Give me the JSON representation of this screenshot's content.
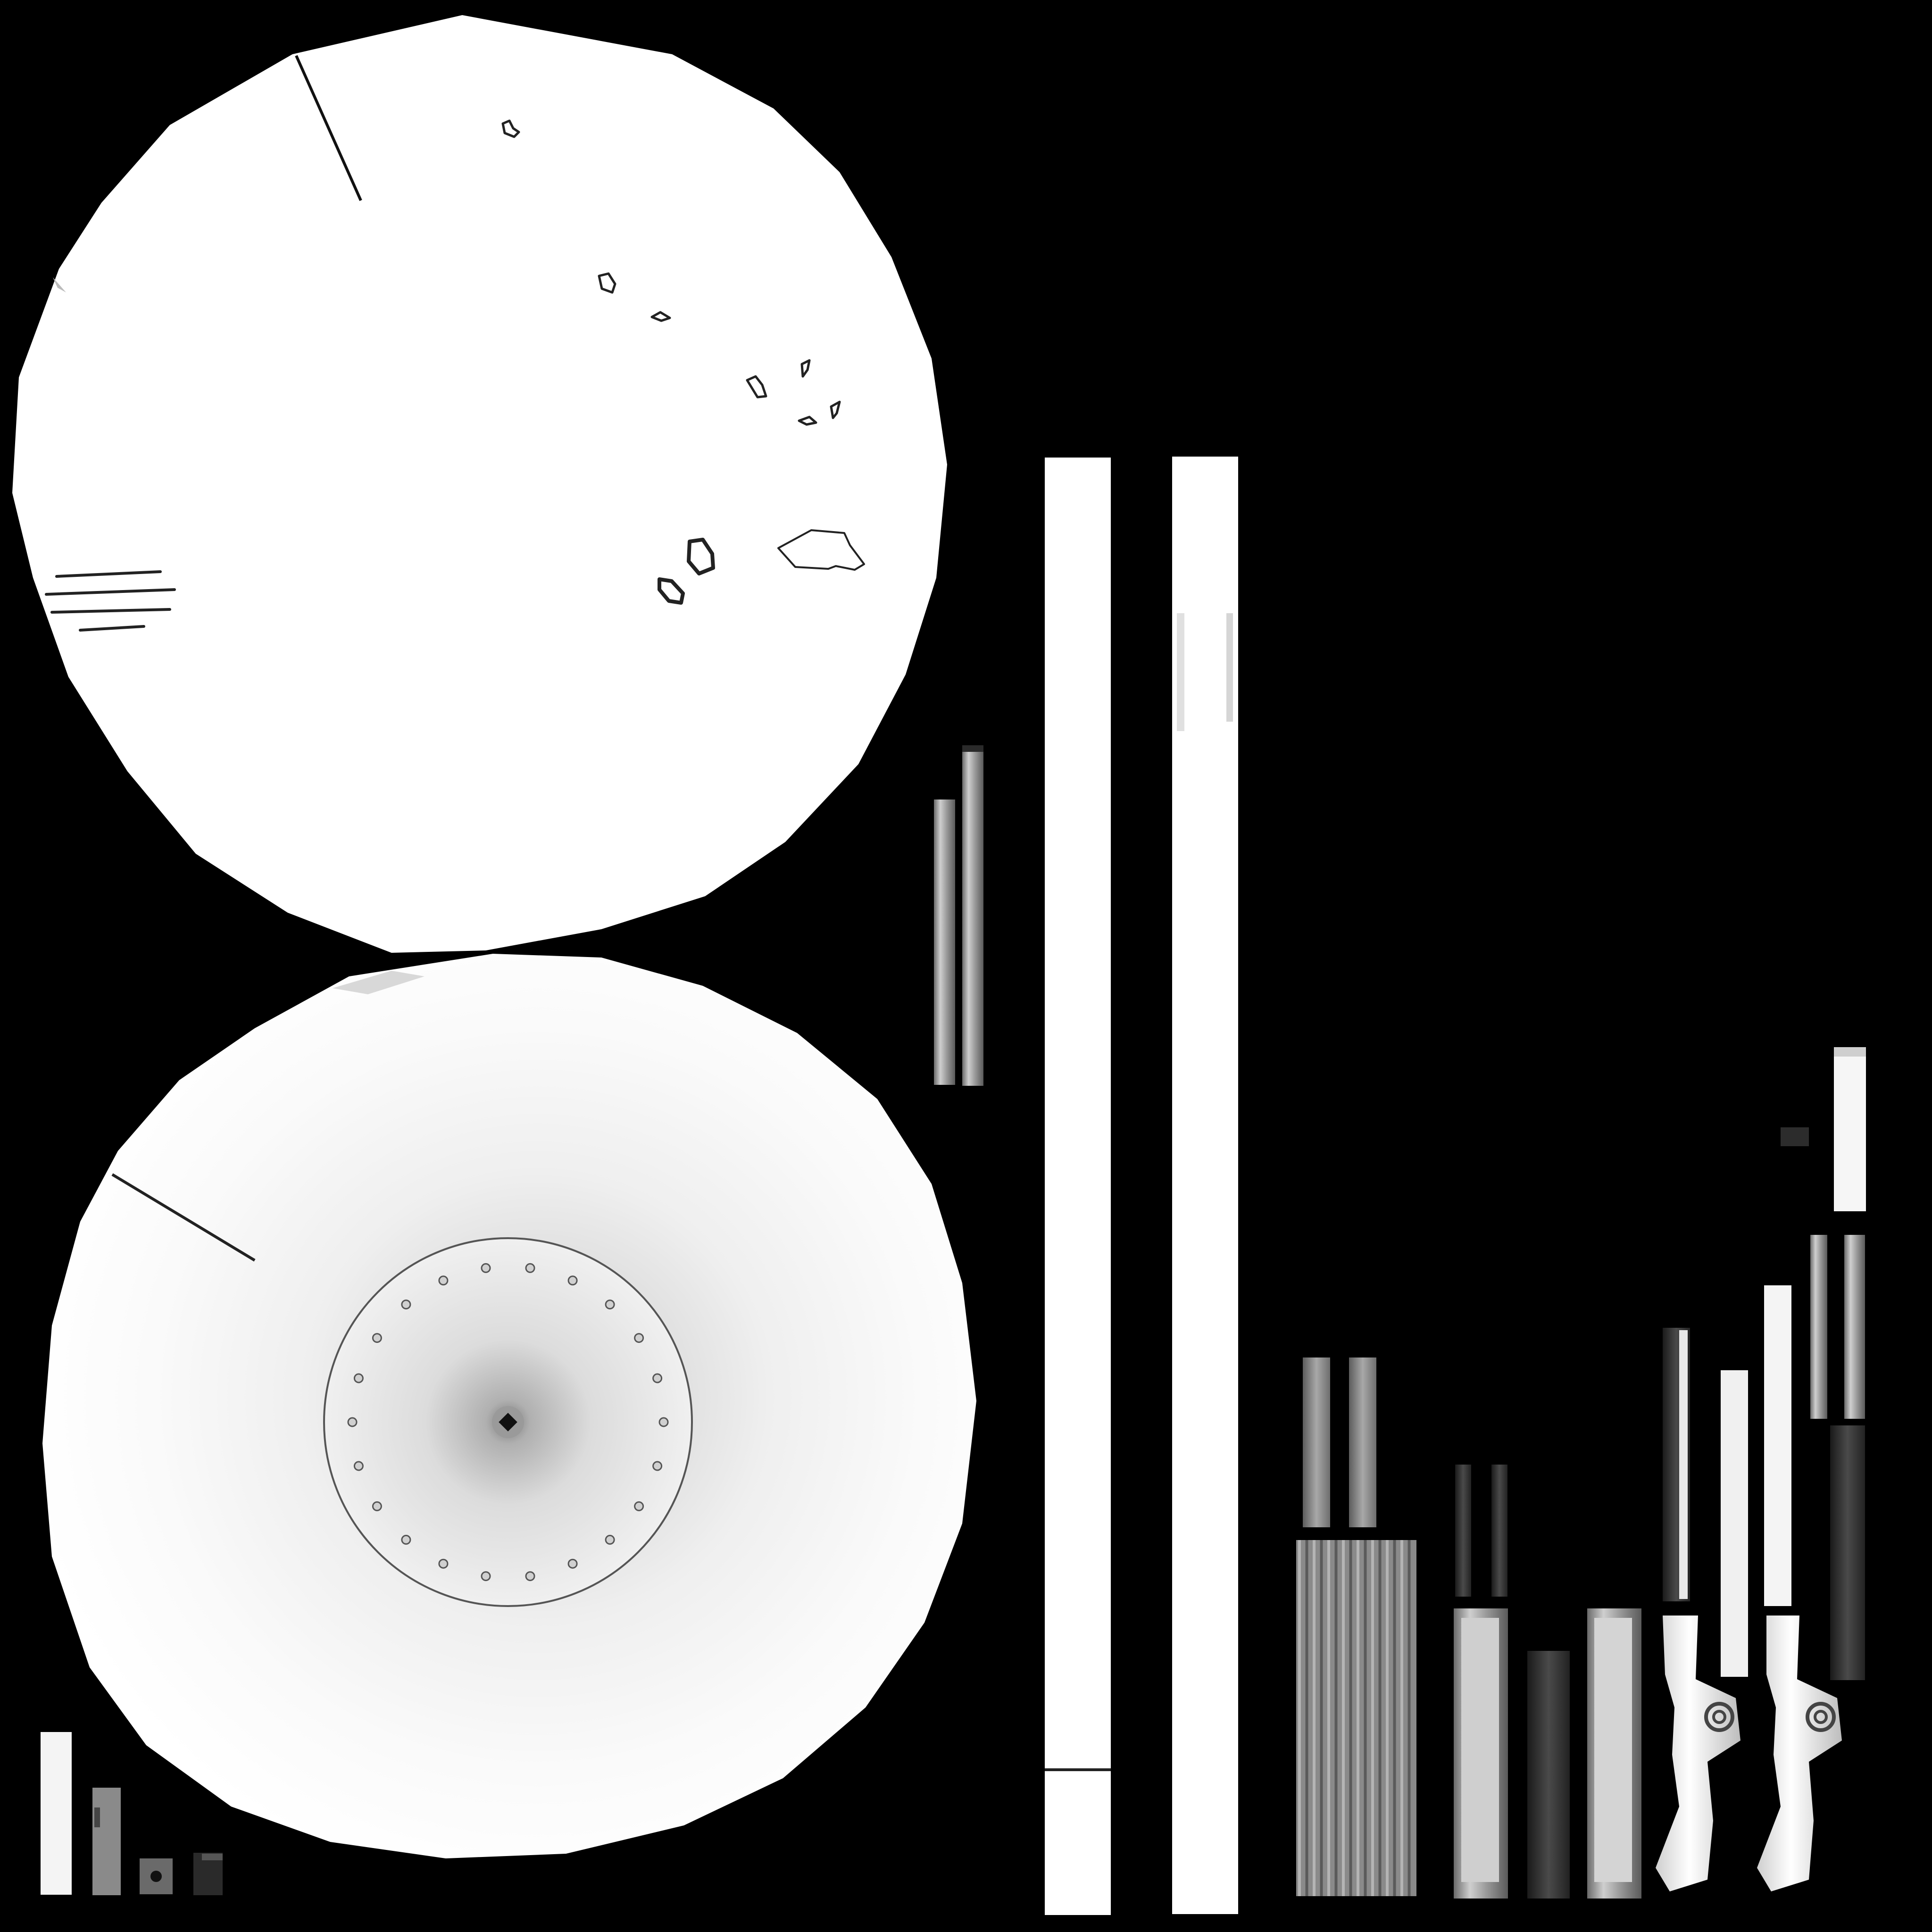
{
  "palette": {
    "background": "#000000",
    "surface": "#ffffff",
    "outline": "#1a1a1a",
    "mid_gray": "#8a8a8a",
    "dark_gray": "#3a3a3a"
  },
  "islands": {
    "upper_disc": {
      "kind": "polygon-disc",
      "fill": "solid",
      "details": [
        "seam-line",
        "blob-outlines",
        "groove-lines"
      ]
    },
    "lower_disc": {
      "kind": "polygon-disc",
      "fill": "radial-occlusion",
      "details": [
        "seam-line",
        "inner-ring",
        "rivet-ring",
        "center-hub"
      ]
    },
    "long_strips": {
      "count": 2
    },
    "thin_strips": {
      "count": 2
    },
    "bottom_left_bits": {
      "count": 5
    },
    "bottom_right_cluster": {
      "kind": "handle-pieces",
      "spiral_count": 2
    }
  }
}
